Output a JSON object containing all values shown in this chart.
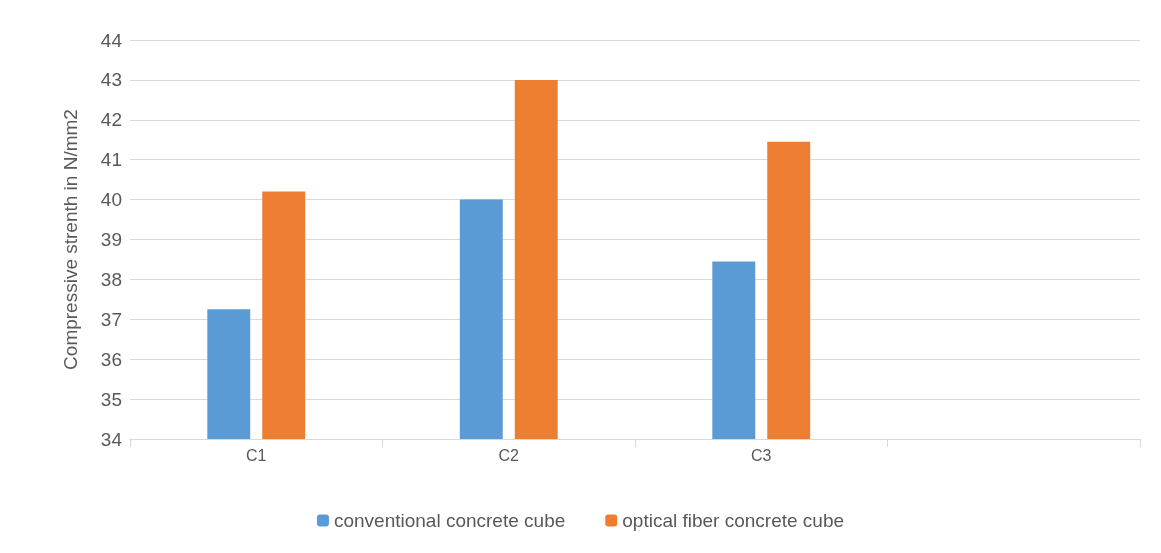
{
  "chart_data": {
    "type": "bar",
    "ylabel": "Compressive strenth in N/mm2",
    "categories": [
      "C1",
      "C2",
      "C3",
      null
    ],
    "series": [
      {
        "name": "conventional concrete cube",
        "color": "#5b9bd5",
        "values": [
          37.25,
          40,
          38.45,
          null
        ]
      },
      {
        "name": "optical fiber concrete cube",
        "color": "#ed7d31",
        "values": [
          40.2,
          43,
          41.45,
          null
        ]
      }
    ],
    "ylim": [
      34,
      44
    ],
    "yticks": [
      34,
      35,
      36,
      37,
      38,
      39,
      40,
      41,
      42,
      43,
      44
    ],
    "grid": "y",
    "legend": "bottom"
  }
}
